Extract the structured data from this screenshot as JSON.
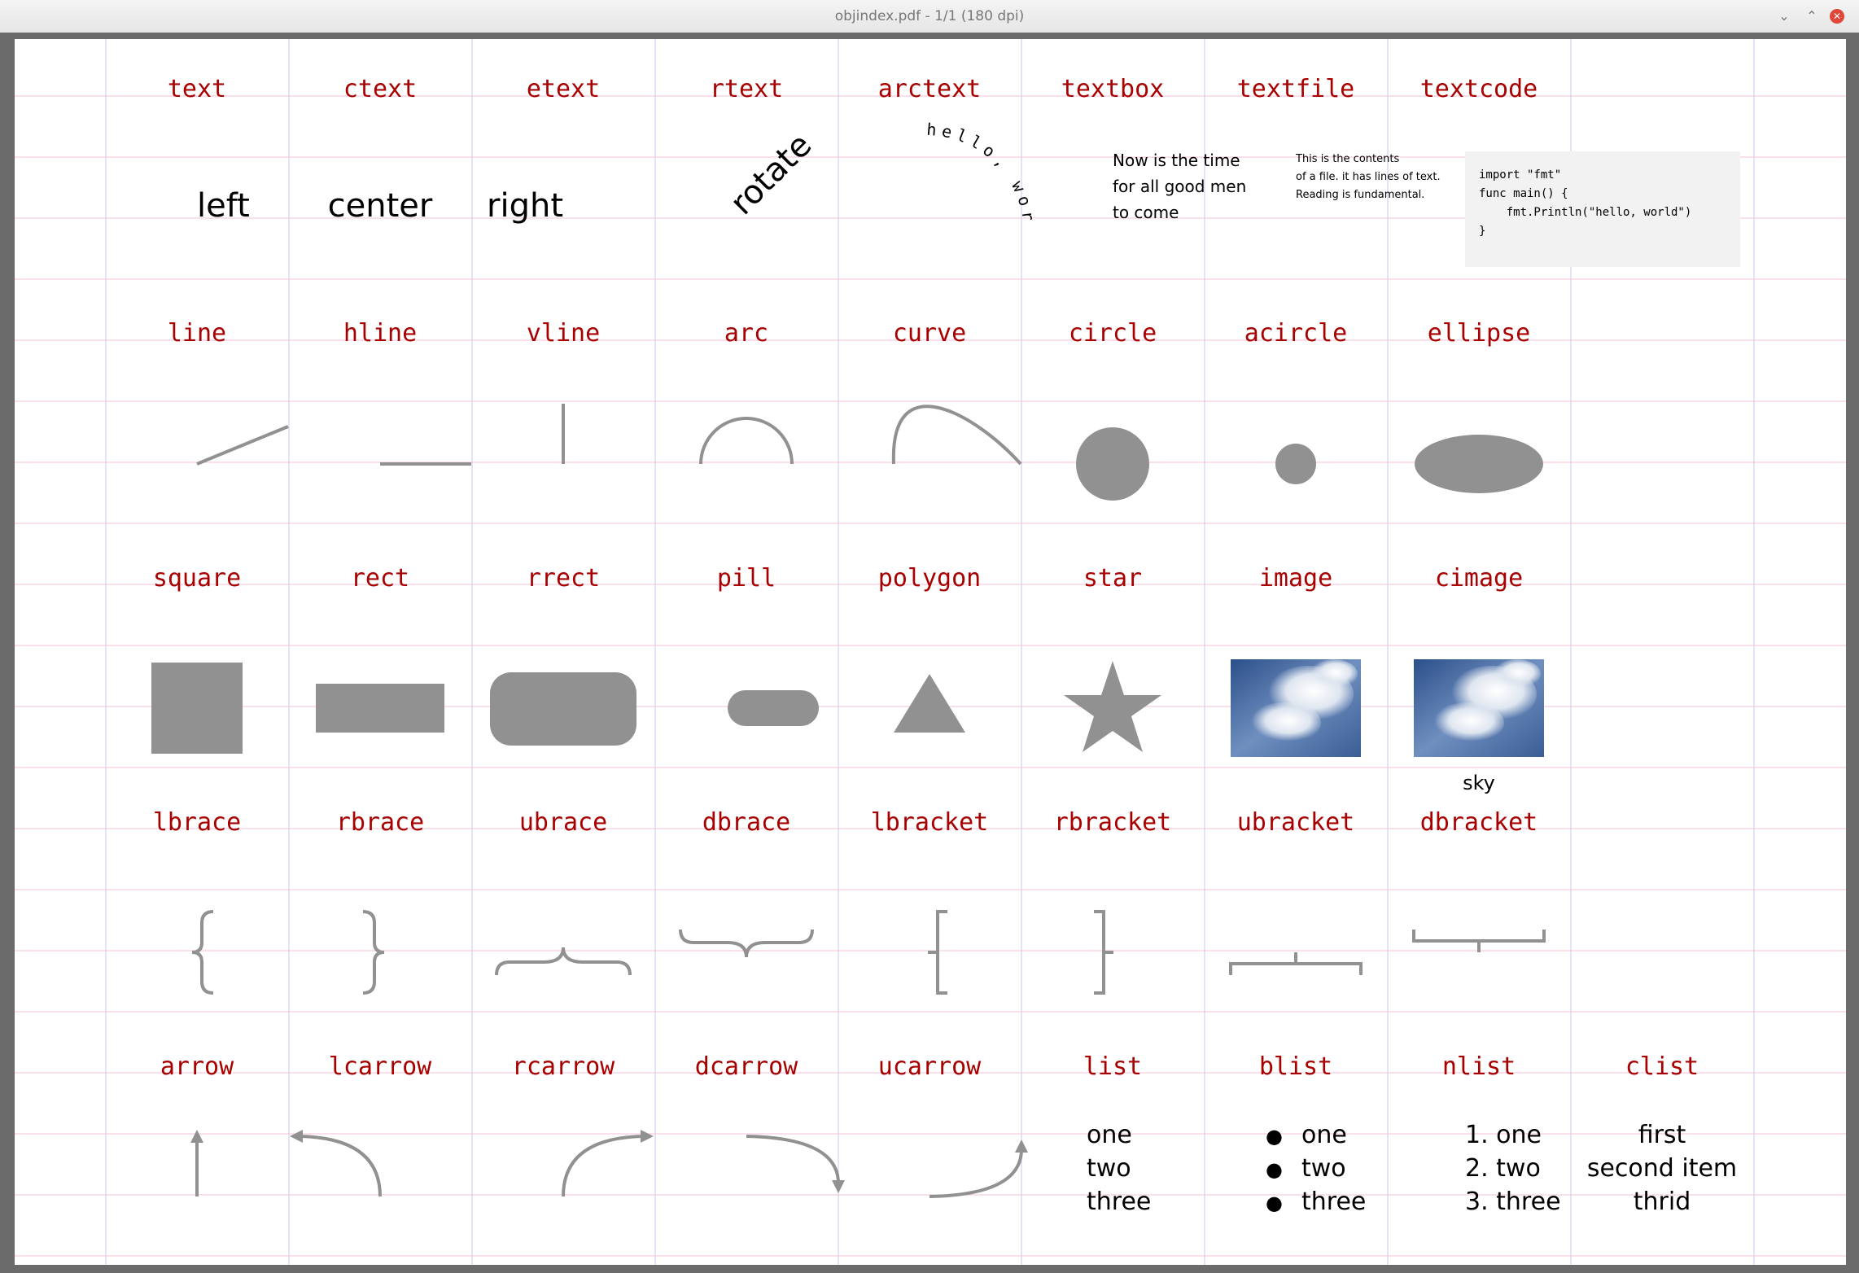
{
  "window": {
    "title": "objindex.pdf - 1/1 (180 dpi)",
    "minimize_glyph": "⌄",
    "maximize_glyph": "⌃",
    "close_glyph": "✕"
  },
  "labels": {
    "row1": [
      "text",
      "ctext",
      "etext",
      "rtext",
      "arctext",
      "textbox",
      "textfile",
      "textcode"
    ],
    "row2": [
      "line",
      "hline",
      "vline",
      "arc",
      "curve",
      "circle",
      "acircle",
      "ellipse"
    ],
    "row3": [
      "square",
      "rect",
      "rrect",
      "pill",
      "polygon",
      "star",
      "image",
      "cimage"
    ],
    "row4": [
      "lbrace",
      "rbrace",
      "ubrace",
      "dbrace",
      "lbracket",
      "rbracket",
      "ubracket",
      "dbracket"
    ],
    "row5": [
      "arrow",
      "lcarrow",
      "rcarrow",
      "dcarrow",
      "ucarrow",
      "list",
      "blist",
      "nlist",
      "clist"
    ]
  },
  "samples": {
    "text_left": "left",
    "text_center": "center",
    "text_right": "right",
    "rotate": "rotate",
    "arctext": "hello, world",
    "textbox_lines": [
      "Now is the time",
      "for all good men",
      "to come"
    ],
    "textfile_lines": [
      "This is the contents",
      "of a file. it has lines of text.",
      "Reading is fundamental."
    ],
    "code_lines": [
      "import \"fmt\"",
      "func main() {",
      "    fmt.Println(\"hello, world\")",
      "}"
    ],
    "cimage_caption": "sky"
  },
  "lists": {
    "list": [
      "one",
      "two",
      "three"
    ],
    "blist": [
      "one",
      "two",
      "three"
    ],
    "nlist": [
      "1. one",
      "2. two",
      "3. three"
    ],
    "clist": [
      "first",
      "second item",
      "thrid"
    ],
    "bullet": "●"
  },
  "colors": {
    "label": "#a80000",
    "shape": "#919191",
    "grid_vertical": "#c8c8f0",
    "grid_horizontal": "#f4c0d8",
    "code_background": "#f2f2f2"
  }
}
